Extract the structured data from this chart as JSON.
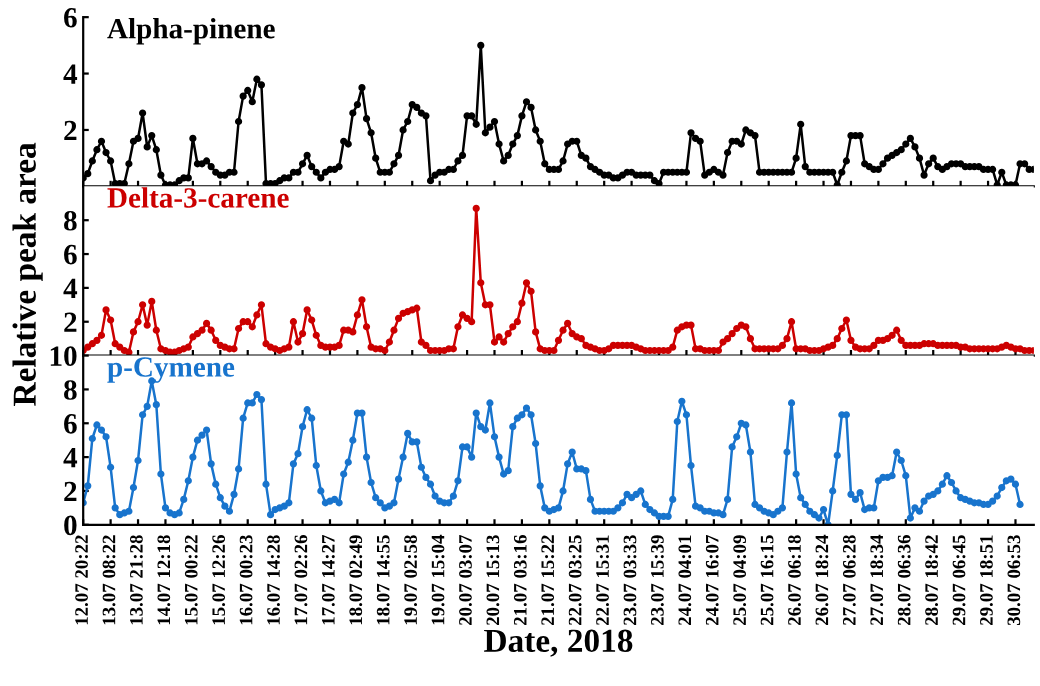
{
  "chart_data": [
    {
      "type": "line",
      "marker": "circle",
      "grid": false,
      "tick_labels": "y",
      "ylim": [
        0,
        6
      ],
      "yticks": [
        2,
        4,
        6
      ],
      "categories": [
        null,
        null,
        null,
        null,
        null,
        null,
        null,
        null,
        null,
        null,
        null,
        null,
        null,
        null,
        null,
        null,
        null,
        null,
        null,
        null,
        null,
        null,
        null,
        null,
        null,
        null,
        null,
        null,
        null,
        null,
        null,
        null,
        null,
        null,
        null,
        null,
        null,
        null,
        null,
        null,
        null,
        null,
        null,
        null,
        null,
        null,
        null,
        null,
        null,
        null,
        null,
        null,
        null,
        null,
        null,
        null,
        null,
        null,
        null,
        null,
        null,
        null,
        null,
        null,
        null,
        null,
        null,
        null,
        null,
        null,
        null,
        null,
        null,
        null,
        null,
        null,
        null,
        null,
        null,
        null,
        null,
        null,
        null,
        null,
        null,
        null,
        null,
        null,
        null,
        null,
        null,
        null,
        null,
        null,
        null,
        null,
        null,
        null,
        null,
        null,
        null,
        null,
        null,
        null,
        null,
        null,
        null,
        null,
        null,
        null,
        null,
        null,
        null,
        null,
        null,
        null,
        null,
        null,
        null,
        null,
        null,
        null,
        null,
        null,
        null,
        null,
        null,
        null,
        null,
        null,
        null,
        null,
        null,
        null,
        null,
        null,
        null,
        null,
        null,
        null,
        null,
        null,
        null,
        null,
        null,
        null,
        null,
        null,
        null,
        null,
        null,
        null,
        null,
        null,
        null,
        null,
        null,
        null,
        null,
        null,
        null,
        null,
        null,
        null,
        null,
        null,
        null,
        null,
        null,
        null,
        null,
        null,
        null,
        null,
        null,
        null,
        null,
        null,
        null,
        null,
        null,
        null,
        null,
        null,
        null,
        null,
        null,
        null,
        null,
        null,
        null,
        null,
        null,
        null,
        null,
        null,
        null,
        null,
        null,
        null,
        null,
        null,
        null,
        null,
        null,
        null,
        null,
        null,
        null
      ],
      "series": [
        {
          "name": "Alpha-pinene",
          "color": "#000000",
          "values": [
            0.3,
            0.45,
            0.9,
            1.3,
            1.6,
            1.2,
            0.9,
            0.1,
            0.1,
            0.1,
            0.8,
            1.6,
            1.7,
            2.6,
            1.4,
            1.8,
            1.3,
            0.4,
            0.05,
            0.05,
            0.05,
            0.2,
            0.3,
            0.3,
            1.7,
            0.8,
            0.8,
            0.9,
            0.7,
            0.5,
            0.4,
            0.4,
            0.5,
            0.5,
            2.3,
            3.2,
            3.4,
            3.0,
            3.8,
            3.6,
            0.1,
            0.1,
            0.1,
            0.2,
            0.3,
            0.3,
            0.5,
            0.5,
            0.8,
            1.1,
            0.7,
            0.5,
            0.3,
            0.5,
            0.6,
            0.6,
            0.7,
            1.6,
            1.5,
            2.6,
            2.9,
            3.5,
            2.4,
            1.9,
            1.0,
            0.5,
            0.5,
            0.5,
            0.8,
            1.1,
            2.0,
            2.3,
            2.9,
            2.8,
            2.6,
            2.5,
            0.2,
            0.4,
            0.5,
            0.5,
            0.6,
            0.6,
            0.9,
            1.1,
            2.5,
            2.5,
            2.2,
            5.0,
            1.9,
            2.1,
            2.3,
            1.5,
            0.9,
            1.1,
            1.5,
            1.8,
            2.5,
            3.0,
            2.8,
            2.0,
            1.6,
            0.8,
            0.6,
            0.6,
            0.6,
            0.9,
            1.5,
            1.6,
            1.6,
            1.1,
            1.0,
            0.7,
            0.6,
            0.5,
            0.4,
            0.4,
            0.3,
            0.3,
            0.4,
            0.5,
            0.5,
            0.4,
            0.4,
            0.4,
            0.4,
            0.2,
            0.1,
            0.5,
            0.5,
            0.5,
            0.5,
            0.5,
            0.5,
            1.9,
            1.7,
            1.6,
            0.4,
            0.5,
            0.6,
            0.5,
            0.4,
            1.2,
            1.6,
            1.6,
            1.5,
            2.0,
            1.9,
            1.8,
            0.5,
            0.5,
            0.5,
            0.5,
            0.5,
            0.5,
            0.5,
            0.5,
            1.0,
            2.2,
            0.7,
            0.5,
            0.5,
            0.5,
            0.5,
            0.5,
            0.5,
            0.05,
            0.5,
            0.9,
            1.8,
            1.8,
            1.8,
            0.8,
            0.7,
            0.6,
            0.6,
            0.8,
            1.0,
            1.1,
            1.2,
            1.3,
            1.5,
            1.7,
            1.4,
            1.0,
            0.4,
            0.8,
            1.0,
            0.7,
            0.6,
            0.7,
            0.8,
            0.8,
            0.8,
            0.7,
            0.7,
            0.7,
            0.7,
            0.6,
            0.6,
            0.6,
            0.05,
            0.5,
            0.05,
            0.05,
            0.05,
            0.8,
            0.8,
            0.6,
            0.6
          ]
        }
      ]
    },
    {
      "type": "line",
      "marker": "circle",
      "grid": false,
      "tick_labels": "y",
      "ylim": [
        0,
        10
      ],
      "yticks": [
        2,
        4,
        6,
        8
      ],
      "ylabel": "Relative peak area",
      "categories": [
        null,
        null,
        null,
        null,
        null,
        null,
        null,
        null,
        null,
        null,
        null,
        null,
        null,
        null,
        null,
        null,
        null,
        null,
        null,
        null,
        null,
        null,
        null,
        null,
        null,
        null,
        null,
        null,
        null,
        null,
        null,
        null,
        null,
        null,
        null,
        null,
        null,
        null,
        null,
        null,
        null,
        null,
        null,
        null,
        null,
        null,
        null,
        null,
        null,
        null,
        null,
        null,
        null,
        null,
        null,
        null,
        null,
        null,
        null,
        null,
        null,
        null,
        null,
        null,
        null,
        null,
        null,
        null,
        null,
        null,
        null,
        null,
        null,
        null,
        null,
        null,
        null,
        null,
        null,
        null,
        null,
        null,
        null,
        null,
        null,
        null,
        null,
        null,
        null,
        null,
        null,
        null,
        null,
        null,
        null,
        null,
        null,
        null,
        null,
        null,
        null,
        null,
        null,
        null,
        null,
        null,
        null,
        null,
        null,
        null,
        null,
        null,
        null,
        null,
        null,
        null,
        null,
        null,
        null,
        null,
        null,
        null,
        null,
        null,
        null,
        null,
        null,
        null,
        null,
        null,
        null,
        null,
        null,
        null,
        null,
        null,
        null,
        null,
        null,
        null,
        null,
        null,
        null,
        null,
        null,
        null,
        null,
        null,
        null,
        null,
        null,
        null,
        null,
        null,
        null,
        null,
        null,
        null,
        null,
        null,
        null,
        null,
        null,
        null,
        null,
        null,
        null,
        null,
        null,
        null,
        null,
        null,
        null,
        null,
        null,
        null,
        null,
        null,
        null,
        null,
        null,
        null,
        null,
        null,
        null,
        null,
        null,
        null,
        null,
        null,
        null,
        null,
        null,
        null,
        null,
        null,
        null,
        null,
        null,
        null,
        null,
        null,
        null,
        null,
        null,
        null,
        null,
        null,
        null
      ],
      "series": [
        {
          "name": "Delta-3-carene",
          "color": "#cc0000",
          "values": [
            0.3,
            0.5,
            0.7,
            0.9,
            1.2,
            2.7,
            2.1,
            0.7,
            0.5,
            0.3,
            0.2,
            1.4,
            2.0,
            3.0,
            1.8,
            3.2,
            1.5,
            0.4,
            0.3,
            0.2,
            0.2,
            0.3,
            0.4,
            0.5,
            1.1,
            1.3,
            1.5,
            1.9,
            1.5,
            0.9,
            0.6,
            0.5,
            0.4,
            0.4,
            1.6,
            2.0,
            2.0,
            1.7,
            2.4,
            3.0,
            0.7,
            0.5,
            0.4,
            0.3,
            0.4,
            0.5,
            2.0,
            0.8,
            1.3,
            2.7,
            2.1,
            1.2,
            0.6,
            0.5,
            0.5,
            0.5,
            0.6,
            1.5,
            1.5,
            1.4,
            2.4,
            3.3,
            1.7,
            0.5,
            0.4,
            0.4,
            0.3,
            0.8,
            1.5,
            2.2,
            2.5,
            2.6,
            2.7,
            2.8,
            0.8,
            0.6,
            0.3,
            0.3,
            0.3,
            0.3,
            0.4,
            0.4,
            1.7,
            2.4,
            2.2,
            2.0,
            8.7,
            4.3,
            3.0,
            3.0,
            0.8,
            1.1,
            0.8,
            1.3,
            1.7,
            2.0,
            3.1,
            4.3,
            3.8,
            1.4,
            0.4,
            0.3,
            0.3,
            0.3,
            0.9,
            1.5,
            1.9,
            1.3,
            1.1,
            1.0,
            0.6,
            0.5,
            0.4,
            0.3,
            0.3,
            0.4,
            0.6,
            0.6,
            0.6,
            0.6,
            0.6,
            0.5,
            0.4,
            0.3,
            0.3,
            0.3,
            0.3,
            0.3,
            0.3,
            0.5,
            1.5,
            1.7,
            1.8,
            1.8,
            0.4,
            0.4,
            0.3,
            0.3,
            0.3,
            0.3,
            0.8,
            1.0,
            1.3,
            1.6,
            1.8,
            1.7,
            1.0,
            0.4,
            0.4,
            0.4,
            0.4,
            0.4,
            0.4,
            0.6,
            1.0,
            2.0,
            0.4,
            0.4,
            0.4,
            0.3,
            0.3,
            0.3,
            0.4,
            0.5,
            0.6,
            1.0,
            1.6,
            2.1,
            0.9,
            0.5,
            0.4,
            0.4,
            0.4,
            0.6,
            0.9,
            0.9,
            1.0,
            1.2,
            1.5,
            0.9,
            0.6,
            0.6,
            0.6,
            0.6,
            0.7,
            0.7,
            0.7,
            0.6,
            0.6,
            0.6,
            0.6,
            0.6,
            0.5,
            0.5,
            0.4,
            0.4,
            0.4,
            0.4,
            0.4,
            0.4,
            0.4,
            0.5,
            0.6,
            0.5,
            0.4,
            0.4,
            0.3,
            0.3,
            0.3
          ]
        }
      ]
    },
    {
      "type": "line",
      "marker": "circle",
      "grid": false,
      "ylim": [
        0,
        10
      ],
      "yticks": [
        0,
        2,
        4,
        6,
        8,
        10
      ],
      "xlabel": "Date, 2018",
      "categories": [
        "12.07 20:22",
        null,
        null,
        null,
        null,
        null,
        "13.07 08:22",
        null,
        null,
        null,
        null,
        null,
        "13.07 21:28",
        null,
        null,
        null,
        null,
        null,
        "14.07 12:18",
        null,
        null,
        null,
        null,
        null,
        "15.07 00:22",
        null,
        null,
        null,
        null,
        null,
        "15.07 12:26",
        null,
        null,
        null,
        null,
        null,
        "16.07 00:23",
        null,
        null,
        null,
        null,
        null,
        "16.07 14:28",
        null,
        null,
        null,
        null,
        null,
        "17.07 02:26",
        null,
        null,
        null,
        null,
        null,
        "17.07 14:27",
        null,
        null,
        null,
        null,
        null,
        "18.07 02:49",
        null,
        null,
        null,
        null,
        null,
        "18.07 14:55",
        null,
        null,
        null,
        null,
        null,
        "19.07 02:58",
        null,
        null,
        null,
        null,
        null,
        "19.07 15:04",
        null,
        null,
        null,
        null,
        null,
        "20.07 03:07",
        null,
        null,
        null,
        null,
        null,
        "20.07 15:13",
        null,
        null,
        null,
        null,
        null,
        "21.07 03:16",
        null,
        null,
        null,
        null,
        null,
        "21.07 15:22",
        null,
        null,
        null,
        null,
        null,
        "22.07 03:25",
        null,
        null,
        null,
        null,
        null,
        "22.07 15:31",
        null,
        null,
        null,
        null,
        null,
        "23.07 03:33",
        null,
        null,
        null,
        null,
        null,
        "23.07 15:39",
        null,
        null,
        null,
        null,
        null,
        "24.07 04:01",
        null,
        null,
        null,
        null,
        null,
        "24.07 16:07",
        null,
        null,
        null,
        null,
        null,
        "25.07 04:09",
        null,
        null,
        null,
        null,
        null,
        "25.07 16:15",
        null,
        null,
        null,
        null,
        null,
        "26.07 06:18",
        null,
        null,
        null,
        null,
        null,
        "26.07 18:24",
        null,
        null,
        null,
        null,
        null,
        "27.07 06:28",
        null,
        null,
        null,
        null,
        null,
        "27.07 18:34",
        null,
        null,
        null,
        null,
        null,
        "28.07 06:36",
        null,
        null,
        null,
        null,
        null,
        "28.07 18:42",
        null,
        null,
        null,
        null,
        null,
        "29.07 06:45",
        null,
        null,
        null,
        null,
        null,
        "29.07 18:51",
        null,
        null,
        null,
        null,
        null,
        "30.07 06:53",
        null,
        null,
        null,
        null
      ],
      "series": [
        {
          "name": "p-Cymene",
          "color": "#1874cd",
          "values": [
            1.3,
            2.3,
            5.1,
            5.9,
            5.6,
            5.2,
            3.4,
            1.0,
            0.6,
            0.7,
            0.8,
            2.2,
            3.8,
            6.5,
            7.0,
            8.5,
            7.1,
            3.0,
            1.0,
            0.7,
            0.6,
            0.7,
            1.5,
            2.6,
            4.0,
            5.0,
            5.3,
            5.6,
            3.6,
            2.4,
            1.6,
            1.1,
            0.8,
            1.8,
            3.3,
            6.3,
            7.2,
            7.2,
            7.7,
            7.4,
            2.4,
            0.6,
            0.9,
            1.0,
            1.1,
            1.3,
            3.6,
            4.2,
            5.8,
            6.8,
            6.3,
            3.5,
            2.0,
            1.3,
            1.4,
            1.5,
            1.3,
            3.0,
            3.7,
            5.0,
            6.6,
            6.6,
            4.0,
            2.5,
            1.6,
            1.3,
            1.0,
            1.1,
            1.3,
            2.7,
            4.0,
            5.4,
            4.9,
            4.9,
            3.4,
            2.8,
            2.4,
            1.7,
            1.4,
            1.3,
            1.3,
            1.7,
            2.6,
            4.6,
            4.6,
            4.0,
            6.6,
            5.8,
            5.6,
            7.2,
            5.2,
            4.0,
            3.0,
            3.2,
            5.8,
            6.3,
            6.5,
            6.9,
            6.5,
            4.8,
            2.3,
            1.0,
            0.8,
            0.9,
            1.0,
            2.0,
            3.6,
            4.3,
            3.3,
            3.3,
            3.2,
            1.5,
            0.8,
            0.8,
            0.8,
            0.8,
            0.8,
            1.0,
            1.3,
            1.8,
            1.6,
            1.8,
            2.0,
            1.2,
            0.9,
            0.7,
            0.5,
            0.5,
            0.5,
            1.5,
            6.1,
            7.3,
            6.5,
            3.5,
            1.1,
            1.0,
            0.8,
            0.8,
            0.7,
            0.7,
            0.6,
            1.5,
            4.6,
            5.2,
            6.0,
            5.9,
            4.3,
            1.2,
            1.0,
            0.8,
            0.7,
            0.6,
            0.8,
            1.0,
            4.3,
            7.2,
            3.0,
            1.6,
            1.2,
            0.8,
            0.6,
            0.4,
            0.9,
            0.0,
            2.0,
            4.1,
            6.5,
            6.5,
            1.8,
            1.5,
            1.9,
            0.9,
            1.0,
            1.0,
            2.6,
            2.8,
            2.8,
            2.9,
            4.3,
            3.8,
            2.9,
            0.4,
            1.0,
            0.8,
            1.4,
            1.7,
            1.8,
            2.0,
            2.4,
            2.9,
            2.5,
            2.0,
            1.6,
            1.5,
            1.4,
            1.3,
            1.3,
            1.2,
            1.2,
            1.4,
            1.7,
            2.2,
            2.6,
            2.7,
            2.4,
            1.2,
            null,
            null,
            null
          ]
        }
      ]
    }
  ]
}
